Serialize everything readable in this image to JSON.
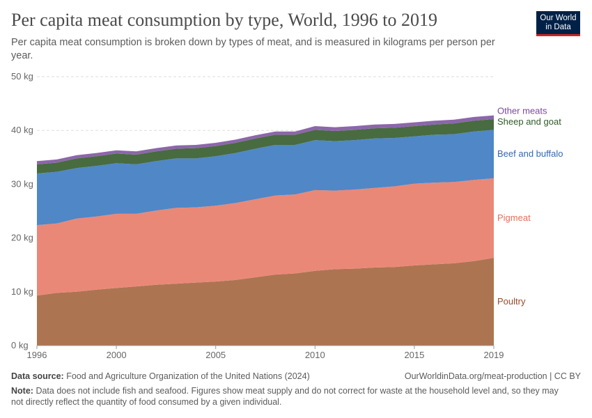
{
  "header": {
    "title": "Per capita meat consumption by type, World, 1996 to 2019",
    "subtitle": "Per capita meat consumption is broken down by types of meat, and is measured in kilograms per person per year.",
    "logo": "Our World in Data"
  },
  "footer": {
    "source_label": "Data source:",
    "source": "Food and Agriculture Organization of the United Nations (2024)",
    "url": "OurWorldinData.org/meat-production | CC BY",
    "note_label": "Note:",
    "note": "Data does not include fish and seafood. Figures show meat supply and do not correct for waste at the household level and, so they may not directly reflect the quantity of food consumed by a given individual."
  },
  "chart_data": {
    "type": "area",
    "stacked": true,
    "title": "Per capita meat consumption by type, World, 1996 to 2019",
    "xlabel": "",
    "ylabel": "",
    "ylim": [
      0,
      50
    ],
    "grid": true,
    "legend": "right-labels",
    "x": [
      1996,
      1997,
      1998,
      1999,
      2000,
      2001,
      2002,
      2003,
      2004,
      2005,
      2006,
      2007,
      2008,
      2009,
      2010,
      2011,
      2012,
      2013,
      2014,
      2015,
      2016,
      2017,
      2018,
      2019
    ],
    "xticks": [
      "1996",
      "2000",
      "2005",
      "2010",
      "2015",
      "2019"
    ],
    "yticks": [
      "0 kg",
      "10 kg",
      "20 kg",
      "30 kg",
      "40 kg",
      "50 kg"
    ],
    "series": [
      {
        "name": "Poultry",
        "color": "#ad7452",
        "values": [
          9.3,
          9.8,
          10.0,
          10.4,
          10.7,
          11.0,
          11.3,
          11.5,
          11.7,
          11.9,
          12.2,
          12.7,
          13.2,
          13.4,
          13.9,
          14.2,
          14.3,
          14.5,
          14.6,
          14.9,
          15.1,
          15.3,
          15.7,
          16.3
        ]
      },
      {
        "name": "Pigmeat",
        "color": "#ea8878",
        "values": [
          13.1,
          12.9,
          13.6,
          13.6,
          13.8,
          13.5,
          13.8,
          14.1,
          14.0,
          14.1,
          14.3,
          14.5,
          14.7,
          14.7,
          15.0,
          14.6,
          14.7,
          14.8,
          15.0,
          15.2,
          15.2,
          15.1,
          15.1,
          14.8
        ]
      },
      {
        "name": "Beef and buffalo",
        "color": "#5087c6",
        "values": [
          9.6,
          9.6,
          9.4,
          9.4,
          9.4,
          9.2,
          9.2,
          9.2,
          9.1,
          9.2,
          9.3,
          9.4,
          9.4,
          9.2,
          9.3,
          9.2,
          9.2,
          9.2,
          9.0,
          8.8,
          8.9,
          8.9,
          9.0,
          9.0
        ]
      },
      {
        "name": "Sheep and goat",
        "color": "#486b40",
        "values": [
          1.7,
          1.7,
          1.8,
          1.8,
          1.8,
          1.8,
          1.8,
          1.8,
          1.9,
          1.9,
          1.9,
          1.9,
          1.9,
          1.9,
          1.9,
          1.9,
          1.9,
          1.9,
          1.9,
          1.9,
          1.9,
          2.0,
          2.0,
          2.0
        ]
      },
      {
        "name": "Other meats",
        "color": "#8c66aa",
        "values": [
          0.6,
          0.6,
          0.6,
          0.6,
          0.6,
          0.6,
          0.6,
          0.6,
          0.6,
          0.6,
          0.6,
          0.6,
          0.6,
          0.6,
          0.7,
          0.7,
          0.7,
          0.7,
          0.7,
          0.7,
          0.7,
          0.7,
          0.7,
          0.7
        ]
      }
    ],
    "label_colors": {
      "Poultry": "#9a4a2a",
      "Pigmeat": "#e56e5a",
      "Beef and buffalo": "#3767b0",
      "Sheep and goat": "#2f5a28",
      "Other meats": "#7a4a9c"
    }
  }
}
